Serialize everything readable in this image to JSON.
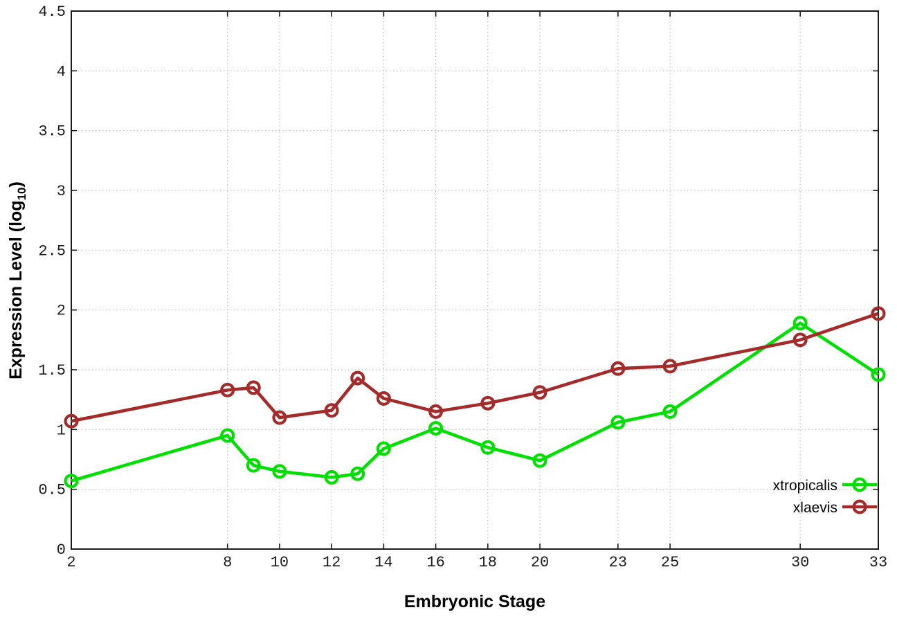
{
  "chart_data": {
    "type": "line",
    "title": "",
    "xlabel": "Embryonic Stage",
    "ylabel": {
      "main": "Expression Level (log",
      "sub": "10",
      "close": ")"
    },
    "x": [
      2,
      8,
      9,
      10,
      12,
      13,
      14,
      16,
      18,
      20,
      23,
      25,
      30,
      33
    ],
    "x_ticks": [
      2,
      8,
      10,
      12,
      14,
      16,
      18,
      20,
      23,
      25,
      30,
      33
    ],
    "x_tick_labels": [
      "2",
      "8",
      "10",
      "12",
      "14",
      "16",
      "18",
      "20",
      "23",
      "25",
      "30",
      "33"
    ],
    "y_ticks": [
      0,
      0.5,
      1,
      1.5,
      2,
      2.5,
      3,
      3.5,
      4,
      4.5
    ],
    "y_tick_labels": [
      "0",
      "0.5",
      "1",
      "1.5",
      "2",
      "2.5",
      "3",
      "3.5",
      "4",
      "4.5"
    ],
    "xlim": [
      2,
      33
    ],
    "ylim": [
      0,
      4.5
    ],
    "grid": true,
    "legend_position": "bottom-right",
    "series": [
      {
        "name": "xtropicalis",
        "color": "#00E000",
        "marker": "open-circle",
        "values": [
          0.57,
          0.95,
          0.7,
          0.65,
          0.6,
          0.63,
          0.84,
          1.01,
          0.85,
          0.74,
          1.06,
          1.15,
          1.89,
          1.46
        ]
      },
      {
        "name": "xlaevis",
        "color": "#A52A2A",
        "marker": "open-circle",
        "values": [
          1.07,
          1.33,
          1.35,
          1.1,
          1.16,
          1.43,
          1.26,
          1.15,
          1.22,
          1.31,
          1.51,
          1.53,
          1.75,
          1.97
        ]
      }
    ]
  },
  "style": {
    "background": "#FFFFFF",
    "axis_color": "#1C1C1C",
    "grid_color": "#BDBDBD",
    "text_color": "#000000"
  }
}
